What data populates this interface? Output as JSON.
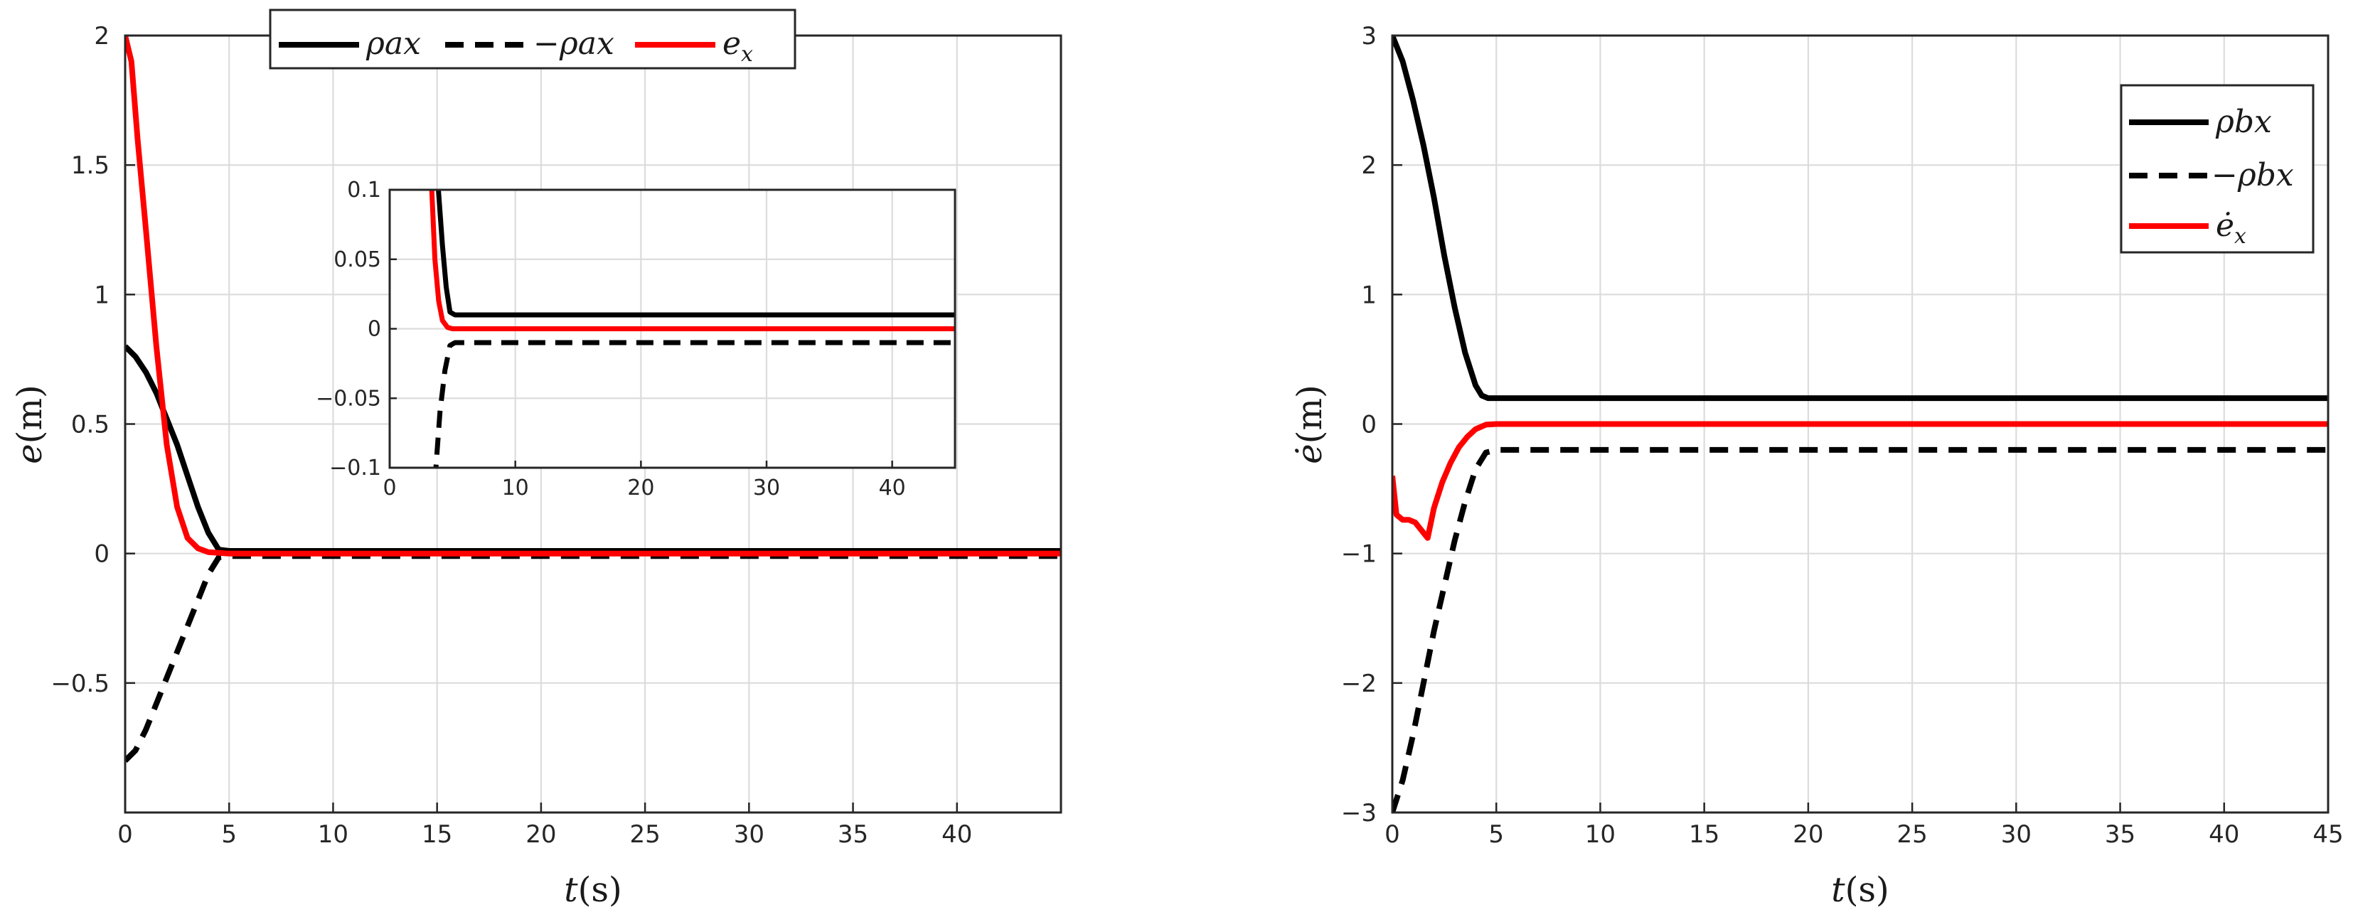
{
  "chart_data": [
    {
      "type": "line",
      "xlabel": "t(s)",
      "ylabel": "e(m)",
      "xlim": [
        0,
        45
      ],
      "ylim": [
        -1,
        2
      ],
      "xticks": [
        "0",
        "5",
        "10",
        "15",
        "20",
        "25",
        "30",
        "35",
        "40"
      ],
      "yticks": [
        "−0.5",
        "0",
        "0.5",
        "1",
        "1.5",
        "2"
      ],
      "grid": true,
      "legend_position": "top-outside",
      "series": [
        {
          "name": "ρax",
          "style": "solid",
          "color": "#000000",
          "x": [
            0,
            0.5,
            1,
            1.5,
            2,
            2.5,
            3,
            3.5,
            4,
            4.5,
            5,
            10,
            20,
            30,
            40,
            45
          ],
          "y": [
            0.8,
            0.76,
            0.7,
            0.62,
            0.52,
            0.42,
            0.3,
            0.18,
            0.08,
            0.015,
            0.01,
            0.01,
            0.01,
            0.01,
            0.01,
            0.01
          ]
        },
        {
          "name": "−ρax",
          "style": "dashed",
          "color": "#000000",
          "x": [
            0,
            0.5,
            1,
            1.5,
            2,
            2.5,
            3,
            3.5,
            4,
            4.5,
            5,
            10,
            20,
            30,
            40,
            45
          ],
          "y": [
            -0.8,
            -0.76,
            -0.68,
            -0.58,
            -0.48,
            -0.38,
            -0.28,
            -0.18,
            -0.08,
            -0.015,
            -0.01,
            -0.01,
            -0.01,
            -0.01,
            -0.01,
            -0.01
          ]
        },
        {
          "name": "e",
          "sub": "x",
          "style": "solid",
          "color": "#ff0000",
          "x": [
            0,
            0.3,
            0.6,
            1,
            1.5,
            2,
            2.5,
            3,
            3.5,
            4,
            5,
            10,
            20,
            30,
            40,
            45
          ],
          "y": [
            2.0,
            1.9,
            1.6,
            1.25,
            0.8,
            0.42,
            0.18,
            0.06,
            0.02,
            0.005,
            0,
            0,
            0,
            0,
            0,
            0
          ]
        }
      ],
      "inset": {
        "xlim": [
          0,
          45
        ],
        "ylim": [
          -0.1,
          0.1
        ],
        "xticks": [
          "0",
          "10",
          "20",
          "30",
          "40"
        ],
        "yticks": [
          "−0.1",
          "−0.05",
          "0",
          "0.05",
          "0.1"
        ],
        "series": [
          {
            "name": "ρax",
            "style": "solid",
            "color": "#000000",
            "x": [
              3.8,
              4.2,
              4.5,
              4.8,
              5.2,
              45
            ],
            "y": [
              0.11,
              0.06,
              0.03,
              0.012,
              0.01,
              0.01
            ]
          },
          {
            "name": "−ρax",
            "style": "dashed",
            "color": "#000000",
            "x": [
              3.6,
              4.0,
              4.4,
              4.8,
              5.2,
              45
            ],
            "y": [
              -0.11,
              -0.06,
              -0.03,
              -0.012,
              -0.01,
              -0.01
            ]
          },
          {
            "name": "e",
            "sub": "x",
            "style": "solid",
            "color": "#ff0000",
            "x": [
              3.3,
              3.6,
              3.9,
              4.2,
              4.6,
              5.0,
              45
            ],
            "y": [
              0.11,
              0.05,
              0.02,
              0.006,
              0.001,
              0,
              0
            ]
          }
        ]
      }
    },
    {
      "type": "line",
      "xlabel": "t(s)",
      "ylabel": "ė(m)",
      "xlim": [
        0,
        45
      ],
      "ylim": [
        -3,
        3
      ],
      "xticks": [
        "0",
        "5",
        "10",
        "15",
        "20",
        "25",
        "30",
        "35",
        "40",
        "45"
      ],
      "yticks": [
        "−3",
        "−2",
        "−1",
        "0",
        "1",
        "2",
        "3"
      ],
      "grid": true,
      "legend_position": "top-right",
      "series": [
        {
          "name": "ρbx",
          "style": "solid",
          "color": "#000000",
          "x": [
            0,
            0.5,
            1,
            1.5,
            2,
            2.5,
            3,
            3.5,
            4,
            4.3,
            4.6,
            5,
            10,
            20,
            30,
            40,
            45
          ],
          "y": [
            3.0,
            2.8,
            2.5,
            2.15,
            1.75,
            1.3,
            0.9,
            0.55,
            0.3,
            0.22,
            0.2,
            0.2,
            0.2,
            0.2,
            0.2,
            0.2,
            0.2
          ]
        },
        {
          "name": "−ρbx",
          "style": "dashed",
          "color": "#000000",
          "x": [
            0,
            0.5,
            1,
            1.5,
            2,
            2.5,
            3,
            3.5,
            4,
            4.5,
            5,
            10,
            20,
            30,
            40,
            45
          ],
          "y": [
            -3.0,
            -2.75,
            -2.4,
            -2.0,
            -1.6,
            -1.25,
            -0.9,
            -0.6,
            -0.35,
            -0.22,
            -0.2,
            -0.2,
            -0.2,
            -0.2,
            -0.2,
            -0.2
          ]
        },
        {
          "name": "ė",
          "sub": "x",
          "style": "solid",
          "color": "#ff0000",
          "x": [
            0,
            0.2,
            0.5,
            0.8,
            1.1,
            1.4,
            1.7,
            2.0,
            2.4,
            2.8,
            3.2,
            3.6,
            4.0,
            4.5,
            5,
            10,
            20,
            30,
            40,
            45
          ],
          "y": [
            -0.4,
            -0.7,
            -0.74,
            -0.74,
            -0.76,
            -0.82,
            -0.88,
            -0.65,
            -0.45,
            -0.3,
            -0.18,
            -0.1,
            -0.04,
            -0.005,
            0,
            0,
            0,
            0,
            0,
            0
          ]
        }
      ]
    }
  ]
}
